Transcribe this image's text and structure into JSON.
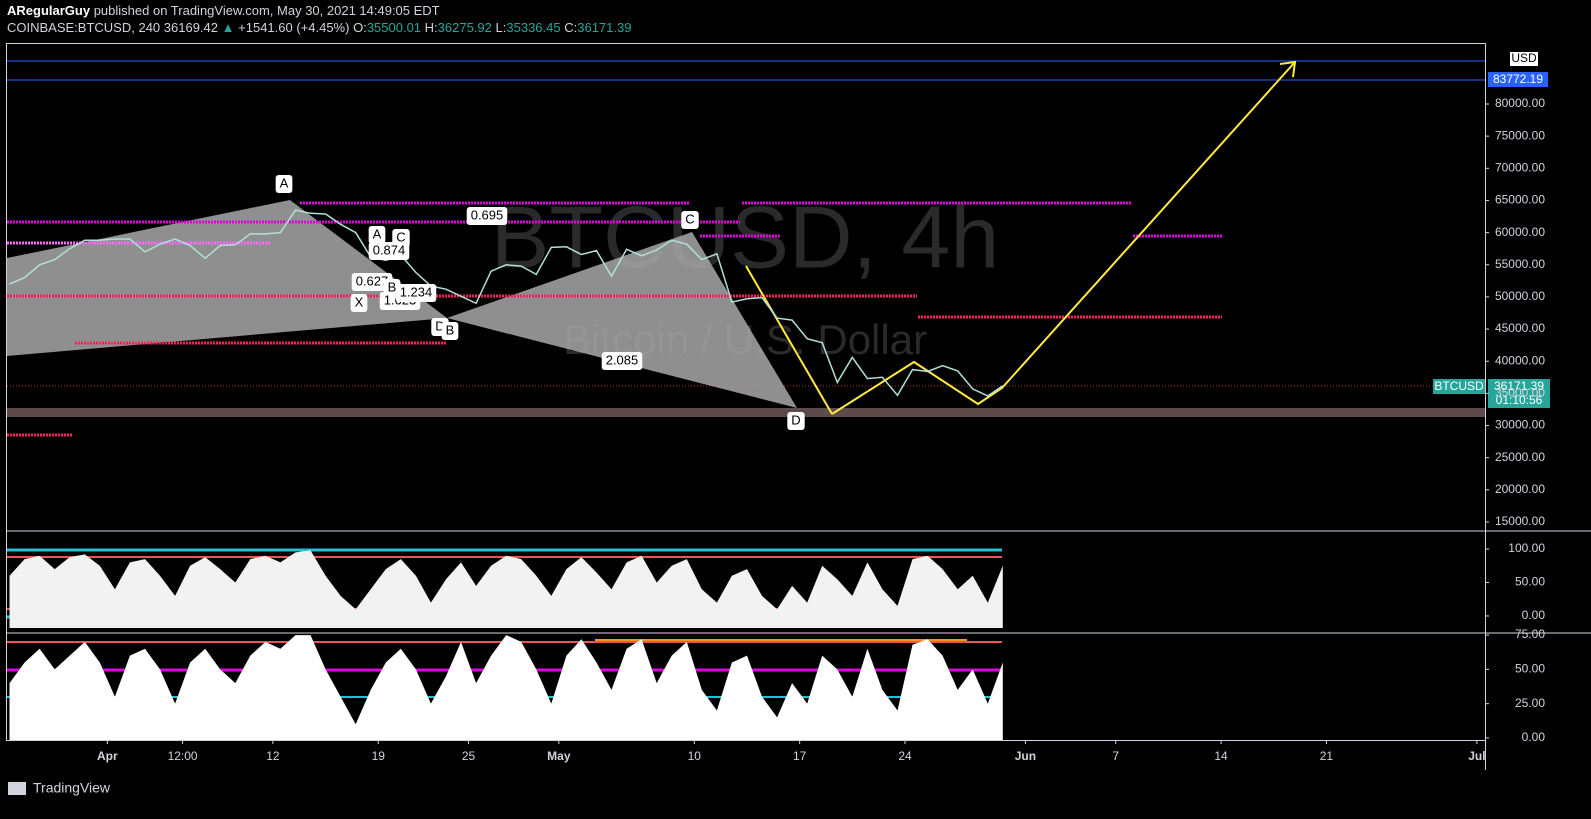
{
  "header": {
    "author": "ARegularGuy",
    "published": "published on TradingView.com, May 30, 2021 14:49:05 EDT",
    "symbol": "COINBASE:BTCUSD, 240",
    "price": "36169.42",
    "arrow": "▲",
    "change": "+1541.60 (+4.45%)",
    "o_label": "O:",
    "o": "35500.01",
    "h_label": "H:",
    "h": "36275.92",
    "l_label": "L:",
    "l": "35336.45",
    "c_label": "C:",
    "c": "36171.39"
  },
  "watermark": {
    "symbol": "BTCUSD, 4h",
    "description": "Bitcoin / U.S. Dollar"
  },
  "overlay": {
    "currency": "USD",
    "level": "83772.19",
    "last_symbol": "BTCUSD",
    "last_price": "36171.39",
    "countdown": "01:10:56"
  },
  "pattern_labels": [
    "A",
    "A",
    "C",
    "0.874",
    "0.627",
    "X",
    "B",
    "1.623",
    "1.234",
    "D",
    "B",
    "0.695",
    "C",
    "2.085",
    "D"
  ],
  "footer": {
    "brand": "TradingView"
  },
  "chart_data": [
    {
      "type": "line",
      "color": "#b2dfdb",
      "categories": [
        null,
        null,
        null,
        null,
        null,
        null,
        null,
        "Apr",
        null,
        null,
        null,
        null,
        "12:00",
        null,
        null,
        null,
        null,
        null,
        "12",
        null,
        null,
        null,
        null,
        null,
        null,
        "19",
        null,
        null,
        null,
        null,
        null,
        "25",
        null,
        null,
        null,
        null,
        null,
        "May",
        null,
        null,
        null,
        null,
        null,
        null,
        null,
        null,
        "10",
        null,
        null,
        null,
        null,
        null,
        null,
        "17",
        null,
        null,
        null,
        null,
        null,
        null,
        "24",
        null,
        null,
        null,
        null,
        null,
        null,
        null,
        "Jun",
        null,
        null,
        null,
        null,
        null,
        "7",
        null,
        null,
        null,
        null,
        null,
        null,
        "14",
        null,
        null,
        null,
        null,
        null,
        null,
        "21",
        null,
        null,
        null,
        null,
        null,
        null,
        null,
        null,
        null,
        "Jul"
      ],
      "values": [
        52000,
        53000,
        55000,
        55800,
        57500,
        58800,
        58800,
        59000,
        59000,
        57000,
        58200,
        59000,
        58000,
        56000,
        58000,
        58100,
        59800,
        59800,
        60000,
        63500,
        63000,
        62900,
        61300,
        60000,
        56200,
        55700,
        56500,
        53800,
        51700,
        51200,
        50100,
        49000,
        54000,
        55000,
        54800,
        53500,
        57700,
        57800,
        56600,
        57200,
        53200,
        57400,
        56400,
        57300,
        58800,
        58200,
        55800,
        56700,
        49200,
        49700,
        49900,
        46700,
        46400,
        43500,
        42900,
        36700,
        40600,
        37300,
        37500,
        34700,
        38700,
        38400,
        39300,
        38500,
        35700,
        34600,
        36171.39,
        null,
        null,
        null,
        null,
        null,
        null,
        null,
        null,
        null,
        null,
        null,
        null,
        null,
        null,
        null,
        null,
        null,
        null,
        null,
        null,
        null,
        null,
        null,
        null,
        null,
        null,
        null,
        null,
        null,
        null,
        null,
        null
      ],
      "ylim": [
        13910,
        89330
      ],
      "yticks": [
        {
          "value": 15000,
          "label": "15000.00"
        },
        {
          "value": 20000,
          "label": "20000.00"
        },
        {
          "value": 25000,
          "label": "25000.00"
        },
        {
          "value": 30000,
          "label": "30000.00"
        },
        {
          "value": 35000,
          "label": "35000.00"
        },
        {
          "value": 40000,
          "label": "40000.00"
        },
        {
          "value": 45000,
          "label": "45000.00"
        },
        {
          "value": 50000,
          "label": "50000.00"
        },
        {
          "value": 55000,
          "label": "55000.00"
        },
        {
          "value": 60000,
          "label": "60000.00"
        },
        {
          "value": 65000,
          "label": "65000.00"
        },
        {
          "value": 70000,
          "label": "70000.00"
        },
        {
          "value": 75000,
          "label": "75000.00"
        },
        {
          "value": 80000,
          "label": "80000.00"
        }
      ]
    },
    {
      "type": "area",
      "color": "#f2f2f2",
      "values": [
        60,
        85,
        90,
        70,
        88,
        92,
        75,
        40,
        80,
        85,
        60,
        30,
        75,
        88,
        70,
        50,
        85,
        90,
        80,
        95,
        98,
        60,
        30,
        10,
        40,
        70,
        85,
        60,
        20,
        55,
        80,
        45,
        75,
        90,
        85,
        60,
        30,
        70,
        88,
        65,
        40,
        80,
        90,
        50,
        75,
        85,
        40,
        20,
        60,
        70,
        30,
        10,
        45,
        20,
        75,
        55,
        30,
        80,
        40,
        15,
        85,
        90,
        70,
        40,
        60,
        20,
        75,
        null,
        null,
        null,
        null,
        null,
        null,
        null,
        null,
        null,
        null,
        null,
        null,
        null,
        null,
        null,
        null,
        null,
        null,
        null,
        null,
        null,
        null,
        null,
        null,
        null,
        null,
        null,
        null,
        null,
        null,
        null,
        null
      ],
      "ylim": [
        -18,
        124
      ],
      "yticks": [
        {
          "value": 100,
          "label": "100.00"
        },
        {
          "value": 50,
          "label": "50.00"
        },
        {
          "value": 0,
          "label": "0.00"
        }
      ]
    },
    {
      "type": "area",
      "color": "#ffffff",
      "values": [
        40,
        55,
        65,
        50,
        60,
        70,
        55,
        30,
        60,
        65,
        50,
        25,
        55,
        65,
        50,
        40,
        60,
        70,
        65,
        75,
        75,
        50,
        30,
        10,
        35,
        55,
        65,
        50,
        25,
        45,
        70,
        40,
        60,
        75,
        70,
        50,
        25,
        60,
        72,
        55,
        35,
        65,
        72,
        40,
        60,
        70,
        35,
        20,
        55,
        60,
        30,
        15,
        40,
        25,
        60,
        50,
        30,
        65,
        35,
        20,
        68,
        72,
        60,
        35,
        50,
        25,
        55,
        null,
        null,
        null,
        null,
        null,
        null,
        null,
        null,
        null,
        null,
        null,
        null,
        null,
        null,
        null,
        null,
        null,
        null,
        null,
        null,
        null,
        null,
        null,
        null,
        null,
        null,
        null,
        null,
        null,
        null,
        null,
        null
      ],
      "ylim": [
        -1.5,
        76.5
      ],
      "yticks": [
        {
          "value": 75,
          "label": "75.00"
        },
        {
          "value": 50,
          "label": "50.00"
        },
        {
          "value": 25,
          "label": "25.00"
        },
        {
          "value": 0,
          "label": "0.00"
        }
      ]
    }
  ]
}
